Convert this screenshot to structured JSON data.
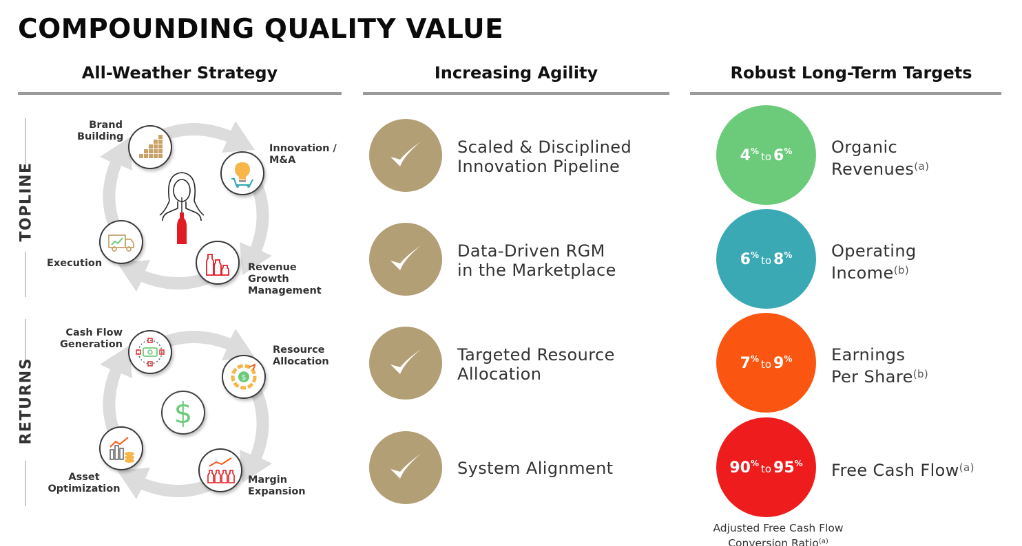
{
  "page": {
    "title": "COMPOUNDING QUALITY VALUE"
  },
  "columns": {
    "strategy": {
      "heading": "All-Weather Strategy"
    },
    "agility": {
      "heading": "Increasing Agility"
    },
    "targets": {
      "heading": "Robust Long-Term Targets"
    }
  },
  "sections": {
    "topline": "TOPLINE",
    "returns": "RETURNS"
  },
  "topline_nodes": {
    "brand": [
      "Brand",
      "Building"
    ],
    "innovation": [
      "Innovation /",
      "M&A"
    ],
    "execution": [
      "Execution"
    ],
    "revenue": [
      "Revenue",
      "Growth",
      "Management"
    ]
  },
  "returns_nodes": {
    "cash": [
      "Cash Flow",
      "Generation"
    ],
    "resource": [
      "Resource",
      "Allocation"
    ],
    "asset": [
      "Asset",
      "Optimization"
    ],
    "margin": [
      "Margin",
      "Expansion"
    ]
  },
  "center_symbol": "$",
  "agility_items": [
    {
      "line1": "Scaled & Disciplined",
      "line2": "Innovation Pipeline"
    },
    {
      "line1": "Data-Driven RGM",
      "line2": "in the Marketplace"
    },
    {
      "line1": "Targeted Resource",
      "line2": "Allocation"
    },
    {
      "line1": "System Alignment",
      "line2": ""
    }
  ],
  "targets": [
    {
      "low": "4",
      "high": "6",
      "unit": "%",
      "to": "to",
      "color": "#6ccb7b",
      "line1": "Organic",
      "line2": "Revenues",
      "note": "(a)"
    },
    {
      "low": "6",
      "high": "8",
      "unit": "%",
      "to": "to",
      "color": "#3aa9b3",
      "line1": "Operating",
      "line2": "Income",
      "note": "(b)"
    },
    {
      "low": "7",
      "high": "9",
      "unit": "%",
      "to": "to",
      "color": "#fb5611",
      "line1": "Earnings",
      "line2": "Per Share",
      "note": "(b)"
    },
    {
      "low": "90",
      "high": "95",
      "unit": "%",
      "to": "to",
      "color": "#ee1c1c",
      "line1": "Free Cash Flow",
      "line2": "",
      "note": "(a)"
    }
  ],
  "footnote": {
    "line1": "Adjusted Free Cash Flow",
    "line2": "Conversion Ratio",
    "note": "(a)"
  },
  "colors": {
    "check_gold": "#b39f75",
    "rule_gray": "#9a9a9a",
    "arrow_gray": "#dcdcdc"
  }
}
